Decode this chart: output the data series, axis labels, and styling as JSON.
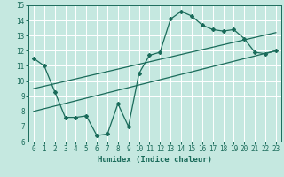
{
  "title": "",
  "xlabel": "Humidex (Indice chaleur)",
  "ylabel": "",
  "xlim": [
    -0.5,
    23.5
  ],
  "ylim": [
    6,
    15
  ],
  "xticks": [
    0,
    1,
    2,
    3,
    4,
    5,
    6,
    7,
    8,
    9,
    10,
    11,
    12,
    13,
    14,
    15,
    16,
    17,
    18,
    19,
    20,
    21,
    22,
    23
  ],
  "yticks": [
    6,
    7,
    8,
    9,
    10,
    11,
    12,
    13,
    14,
    15
  ],
  "bg_color": "#c5e8e0",
  "line_color": "#1a6b5a",
  "grid_color": "#ffffff",
  "line1_x": [
    0,
    1,
    2,
    3,
    4,
    5,
    6,
    7,
    8,
    9,
    10,
    11,
    12,
    13,
    14,
    15,
    16,
    17,
    18,
    19,
    20,
    21,
    22,
    23
  ],
  "line1_y": [
    11.5,
    11.0,
    9.3,
    7.6,
    7.6,
    7.7,
    6.4,
    6.5,
    8.5,
    7.0,
    10.5,
    11.7,
    11.9,
    14.1,
    14.6,
    14.3,
    13.7,
    13.4,
    13.3,
    13.4,
    12.8,
    11.9,
    11.8,
    12.0
  ],
  "line2_x": [
    0,
    23
  ],
  "line2_y": [
    9.5,
    13.2
  ],
  "line3_x": [
    0,
    23
  ],
  "line3_y": [
    8.0,
    12.0
  ]
}
